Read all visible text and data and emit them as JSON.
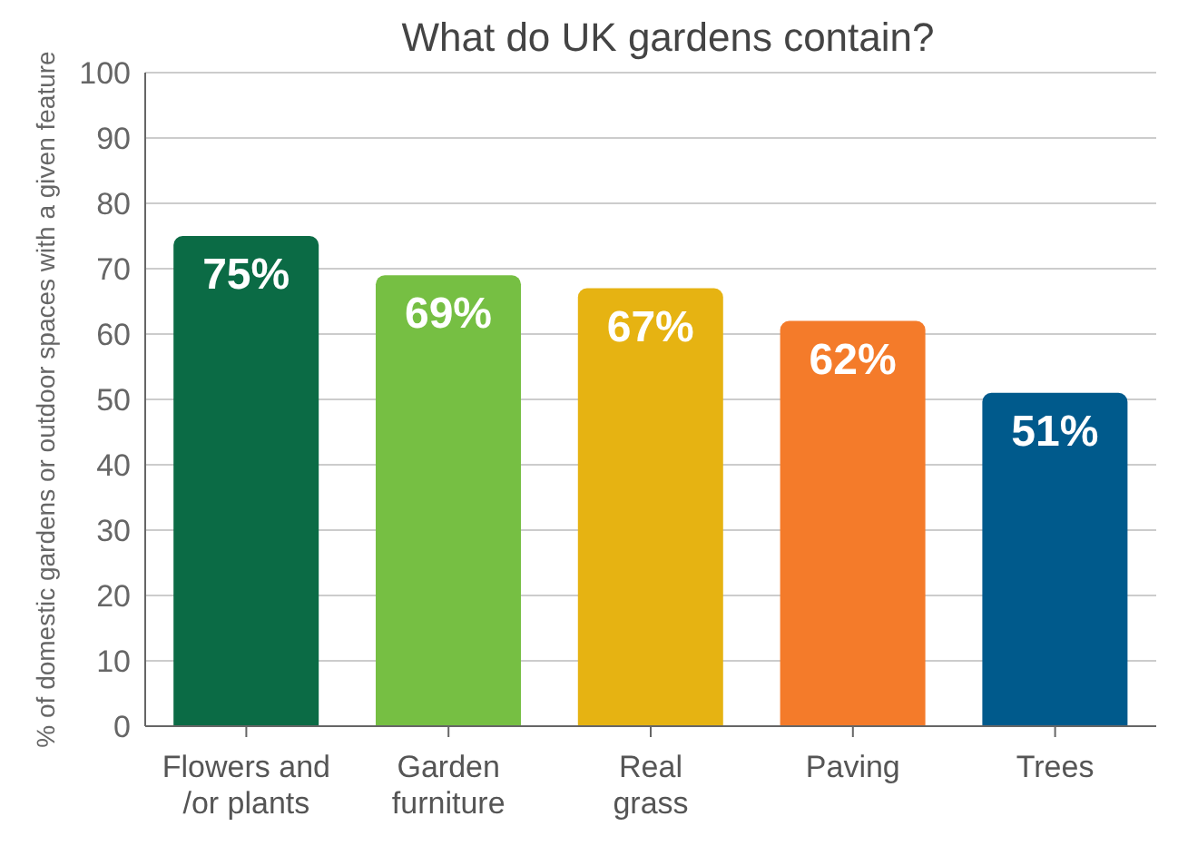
{
  "chart_data": {
    "type": "bar",
    "title": "What do UK gardens contain?",
    "ylabel": "% of domestic gardens or outdoor spaces with a given feature",
    "categories": [
      "Flowers and\n/or plants",
      "Garden\nfurniture",
      "Real\ngrass",
      "Paving",
      "Trees"
    ],
    "values": [
      75,
      69,
      67,
      62,
      51
    ],
    "colors": [
      "#0b6b45",
      "#76bf43",
      "#e6b312",
      "#f47b2a",
      "#005a8c"
    ],
    "value_labels": [
      "75%",
      "69%",
      "67%",
      "62%",
      "51%"
    ],
    "ylim": [
      0,
      100
    ],
    "yticks": [
      0,
      10,
      20,
      30,
      40,
      50,
      60,
      70,
      80,
      90,
      100
    ],
    "grid": "y"
  }
}
